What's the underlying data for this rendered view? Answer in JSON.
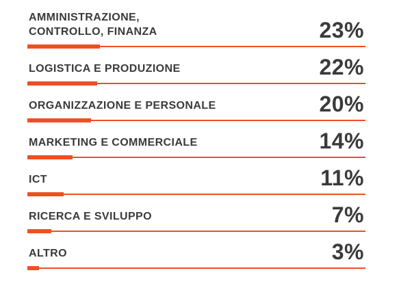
{
  "colors": {
    "accent": "#f04e23",
    "text": "#3a3a3a"
  },
  "chart_data": {
    "type": "bar",
    "orientation": "horizontal",
    "categories": [
      "AMMINISTRAZIONE,\nCONTROLLO, FINANZA",
      "LOGISTICA E PRODUZIONE",
      "ORGANIZZAZIONE E PERSONALE",
      "MARKETING E COMMERCIALE",
      "ICT",
      "RICERCA E SVILUPPO",
      "ALTRO"
    ],
    "values": [
      23,
      22,
      20,
      14,
      11,
      7,
      3
    ],
    "value_labels": [
      "23%",
      "22%",
      "20%",
      "14%",
      "11%",
      "7%",
      "3%"
    ],
    "unit": "%",
    "xlim": [
      0,
      100
    ],
    "grid": false,
    "legend": "none"
  }
}
